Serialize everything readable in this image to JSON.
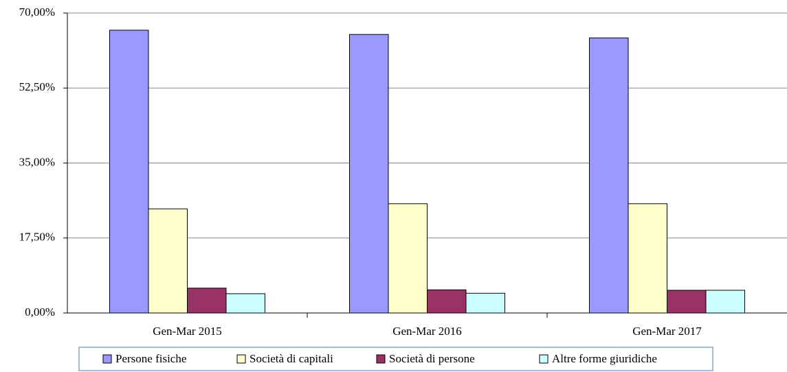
{
  "chart_data": {
    "type": "bar",
    "categories": [
      "Gen-Mar 2015",
      "Gen-Mar 2016",
      "Gen-Mar 2017"
    ],
    "series": [
      {
        "name": "Persone fisiche",
        "color": "#9999ff",
        "values": [
          66.0,
          65.0,
          64.2
        ]
      },
      {
        "name": "Società di capitali",
        "color": "#ffffcc",
        "values": [
          24.3,
          25.5,
          25.5
        ]
      },
      {
        "name": "Società di persone",
        "color": "#993366",
        "values": [
          5.8,
          5.4,
          5.3
        ]
      },
      {
        "name": "Altre forme giuridiche",
        "color": "#ccffff",
        "values": [
          4.5,
          4.6,
          5.3
        ]
      }
    ],
    "ylim": [
      0,
      70
    ],
    "yticks": [
      {
        "value": 0,
        "label": "0,00%"
      },
      {
        "value": 17.5,
        "label": "17,50%"
      },
      {
        "value": 35,
        "label": "35,00%"
      },
      {
        "value": 52.5,
        "label": "52,50%"
      },
      {
        "value": 70,
        "label": "70,00%"
      }
    ],
    "grid": true,
    "legend": "bottom"
  }
}
